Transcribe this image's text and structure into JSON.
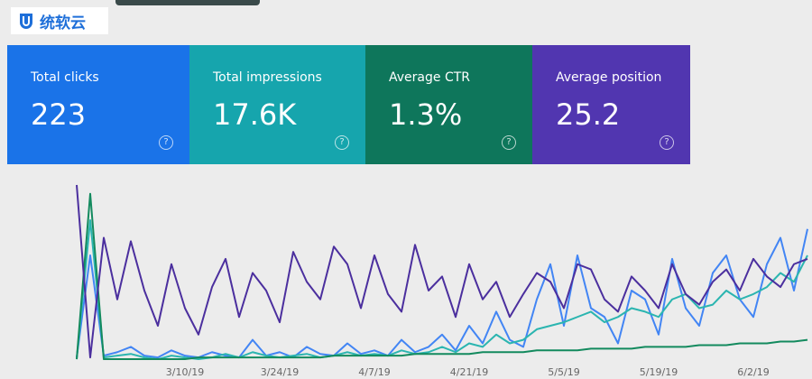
{
  "logo": {
    "text": "统软云"
  },
  "cards": [
    {
      "value": "223"
    },
    {
      "value": "17.6K"
    },
    {
      "value": "1.3%"
    },
    {
      "value": "25.2"
    }
  ],
  "chart_data": {
    "type": "line",
    "categories": [
      null,
      null,
      null,
      null,
      null,
      null,
      null,
      null,
      "3/10/19",
      null,
      null,
      null,
      null,
      null,
      null,
      "3/24/19",
      null,
      null,
      null,
      null,
      null,
      null,
      "4/7/19",
      null,
      null,
      null,
      null,
      null,
      null,
      "4/21/19",
      null,
      null,
      null,
      null,
      null,
      null,
      "5/5/19",
      null,
      null,
      null,
      null,
      null,
      null,
      "5/19/19",
      null,
      null,
      null,
      null,
      null,
      null,
      "6/2/19",
      null,
      null,
      null,
      null
    ],
    "series": [
      {
        "name": "Total clicks",
        "color": "#4285f4",
        "values": [
          2,
          60,
          3,
          5,
          8,
          3,
          2,
          6,
          3,
          2,
          5,
          3,
          2,
          12,
          3,
          5,
          2,
          8,
          4,
          3,
          10,
          4,
          6,
          3,
          12,
          5,
          8,
          15,
          6,
          20,
          10,
          28,
          12,
          8,
          35,
          55,
          20,
          60,
          30,
          25,
          10,
          40,
          35,
          15,
          58,
          30,
          20,
          50,
          60,
          35,
          25,
          55,
          70,
          40,
          75
        ]
      },
      {
        "name": "Total impressions",
        "color": "#2bb5b0",
        "values": [
          1,
          80,
          2,
          3,
          4,
          2,
          1,
          3,
          2,
          1,
          2,
          4,
          2,
          5,
          3,
          2,
          3,
          4,
          2,
          3,
          5,
          3,
          4,
          3,
          6,
          4,
          5,
          8,
          5,
          10,
          8,
          15,
          10,
          12,
          18,
          20,
          22,
          25,
          28,
          22,
          25,
          30,
          28,
          25,
          35,
          38,
          30,
          32,
          40,
          35,
          38,
          42,
          50,
          45,
          60
        ]
      },
      {
        "name": "Average CTR",
        "color": "#138a5e",
        "values": [
          1,
          95,
          1,
          1,
          1,
          1,
          1,
          1,
          1,
          2,
          2,
          2,
          2,
          2,
          2,
          2,
          2,
          2,
          2,
          3,
          3,
          3,
          3,
          3,
          3,
          4,
          4,
          4,
          4,
          4,
          5,
          5,
          5,
          5,
          6,
          6,
          6,
          6,
          7,
          7,
          7,
          7,
          8,
          8,
          8,
          8,
          9,
          9,
          9,
          10,
          10,
          10,
          11,
          11,
          12
        ]
      },
      {
        "name": "Average position",
        "color": "#4b2f9e",
        "values": [
          100,
          2,
          70,
          35,
          68,
          40,
          20,
          55,
          30,
          15,
          42,
          58,
          25,
          50,
          40,
          22,
          62,
          45,
          35,
          65,
          55,
          30,
          60,
          38,
          28,
          66,
          40,
          48,
          25,
          55,
          35,
          45,
          25,
          38,
          50,
          45,
          30,
          55,
          52,
          35,
          28,
          48,
          40,
          30,
          55,
          38,
          32,
          45,
          52,
          40,
          58,
          48,
          42,
          55,
          58
        ]
      }
    ]
  }
}
